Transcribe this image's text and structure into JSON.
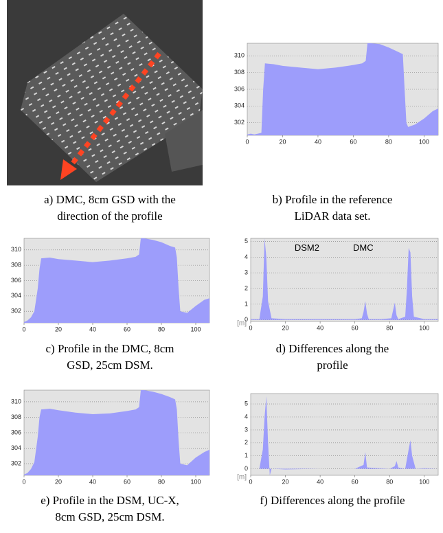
{
  "image": {
    "caption": [
      "a) DMC, 8cm GSD with the",
      "direction of the profile"
    ]
  },
  "chart_data": [
    {
      "type": "area",
      "caption": [
        "b) Profile in the reference",
        "LiDAR data set."
      ],
      "color": "#9d9dfb",
      "grid": true,
      "x": [
        0,
        2,
        4,
        6,
        8,
        9,
        10,
        15,
        20,
        30,
        40,
        50,
        60,
        65,
        67,
        68,
        70,
        75,
        80,
        85,
        88,
        89,
        90,
        91,
        95,
        100,
        105,
        108
      ],
      "values": [
        300.6,
        300.7,
        300.6,
        300.7,
        300.8,
        306,
        309.1,
        309,
        308.8,
        308.6,
        308.4,
        308.6,
        308.9,
        309.1,
        309.4,
        311.5,
        311.5,
        311.4,
        311,
        310.5,
        310.2,
        306,
        302,
        301.5,
        301.8,
        302.5,
        303.4,
        303.7
      ],
      "xlim": [
        0,
        108
      ],
      "xticks": [
        0,
        20,
        40,
        60,
        80,
        100
      ],
      "ylim": [
        300.5,
        311.5
      ],
      "yticks": [
        302,
        304,
        306,
        308,
        310
      ]
    },
    {
      "type": "area",
      "caption": [
        "c) Profile in the DMC, 8cm",
        "GSD, 25cm DSM."
      ],
      "color": "#9d9dfb",
      "grid": true,
      "x": [
        0,
        2,
        4,
        6,
        8,
        9,
        10,
        15,
        20,
        30,
        40,
        50,
        60,
        65,
        67,
        68,
        70,
        75,
        80,
        85,
        88,
        89,
        90,
        91,
        95,
        100,
        105,
        108
      ],
      "values": [
        300.6,
        300.8,
        301.2,
        302,
        305,
        307.5,
        308.9,
        309,
        308.8,
        308.6,
        308.4,
        308.6,
        308.9,
        309.1,
        309.4,
        311.5,
        311.5,
        311.3,
        311,
        310.5,
        310.3,
        309,
        305,
        302,
        301.8,
        302.7,
        303.5,
        303.7
      ],
      "xlim": [
        0,
        108
      ],
      "xticks": [
        0,
        20,
        40,
        60,
        80,
        100
      ],
      "ylim": [
        300.5,
        311.5
      ],
      "yticks": [
        302,
        304,
        306,
        308,
        310
      ]
    },
    {
      "type": "area",
      "caption": [
        "d) Differences along the",
        "profile"
      ],
      "color": "#9d9dfb",
      "grid": true,
      "ylabel": "[m]",
      "annotations": [
        "DSM2",
        "DMC"
      ],
      "x": [
        0,
        5,
        7,
        8,
        9,
        10,
        12,
        20,
        40,
        60,
        64,
        65,
        66,
        67,
        68,
        75,
        81,
        82,
        83,
        84,
        85,
        89,
        90,
        91,
        92,
        93,
        94,
        100,
        108
      ],
      "values": [
        0.05,
        0.05,
        1.5,
        5.2,
        4,
        1.2,
        0.1,
        0.05,
        0.05,
        0.05,
        0.1,
        0.5,
        1.2,
        0.4,
        0.05,
        0.05,
        0.1,
        0.6,
        1.1,
        0.3,
        0.05,
        0.2,
        2,
        4.6,
        4.3,
        1.5,
        0.2,
        0.05,
        0.05
      ],
      "xlim": [
        0,
        108
      ],
      "xticks": [
        0,
        20,
        40,
        60,
        80,
        100
      ],
      "ylim": [
        -0.1,
        5.2
      ],
      "yticks": [
        0,
        1,
        2,
        3,
        4,
        5
      ]
    },
    {
      "type": "area",
      "caption": [
        "e) Profile in the DSM, UC-X,",
        "8cm GSD, 25cm DSM."
      ],
      "color": "#9d9dfb",
      "grid": true,
      "x": [
        0,
        2,
        4,
        6,
        8,
        9,
        10,
        15,
        20,
        30,
        40,
        50,
        60,
        65,
        67,
        68,
        70,
        75,
        80,
        85,
        88,
        89,
        90,
        91,
        95,
        100,
        105,
        108
      ],
      "values": [
        300.6,
        300.8,
        301.3,
        302.2,
        305.5,
        308,
        309,
        309.1,
        308.9,
        308.6,
        308.4,
        308.5,
        308.8,
        309,
        309.3,
        311.5,
        311.5,
        311.3,
        311,
        310.6,
        310.3,
        309,
        305,
        302,
        301.8,
        302.8,
        303.5,
        303.8
      ],
      "xlim": [
        0,
        108
      ],
      "xticks": [
        0,
        20,
        40,
        60,
        80,
        100
      ],
      "ylim": [
        300.5,
        311.5
      ],
      "yticks": [
        302,
        304,
        306,
        308,
        310
      ]
    },
    {
      "type": "area",
      "caption": [
        "f) Differences along the profile"
      ],
      "color": "#9d9dfb",
      "grid": true,
      "ylabel": "[m]",
      "x": [
        0,
        5,
        7,
        8,
        9,
        10,
        11,
        12,
        20,
        40,
        60,
        65,
        66,
        67,
        80,
        83,
        84,
        85,
        89,
        91,
        92,
        93,
        95,
        100,
        108
      ],
      "values": [
        0,
        0,
        1.5,
        4,
        5.6,
        2,
        -0.5,
        0,
        -0.05,
        0,
        0,
        0.3,
        1.3,
        0.1,
        0,
        0.2,
        0.6,
        0.1,
        0,
        1.5,
        2.2,
        1,
        0,
        0.05,
        0
      ],
      "xlim": [
        0,
        108
      ],
      "xticks": [
        0,
        20,
        40,
        60,
        80,
        100
      ],
      "ylim": [
        -0.5,
        5.8
      ],
      "yticks": [
        0,
        1,
        2,
        3,
        4,
        5
      ]
    }
  ]
}
